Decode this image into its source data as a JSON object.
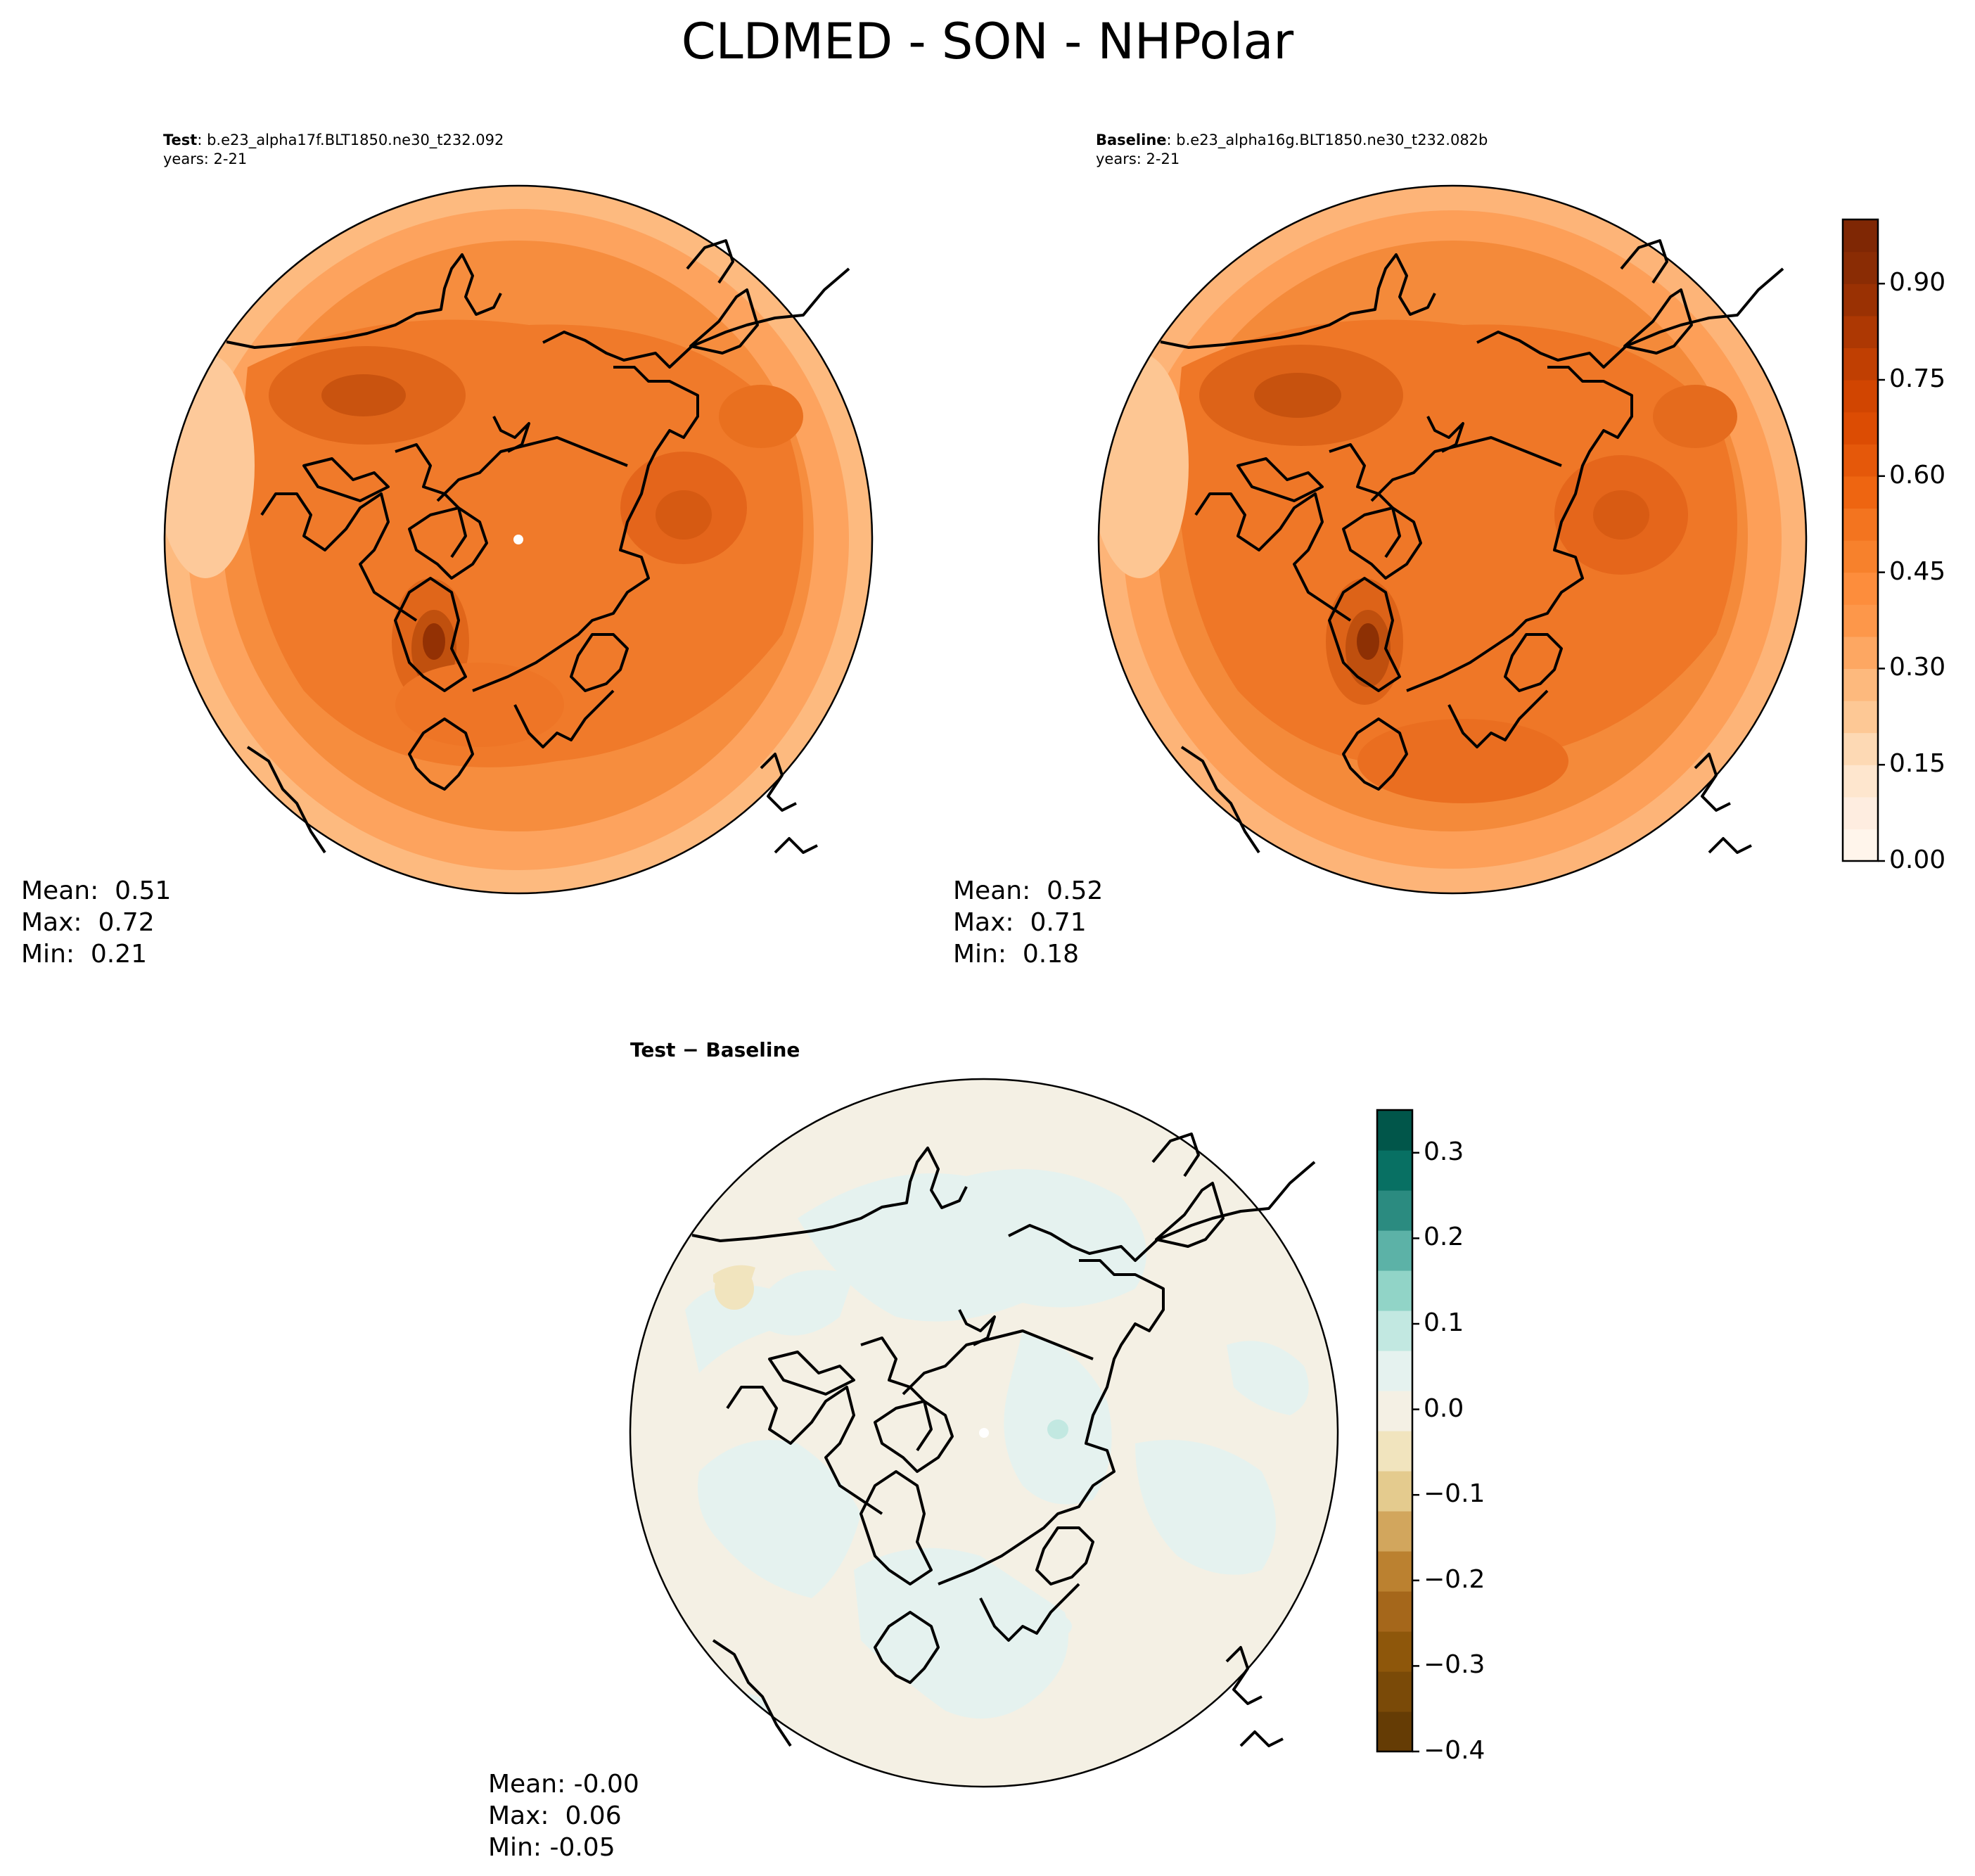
{
  "figure": {
    "title": "CLDMED - SON - NHPolar"
  },
  "panels": {
    "test": {
      "label": "Test",
      "case": ": b.e23_alpha17f.BLT1850.ne30_t232.092",
      "years": "years: 2-21",
      "mean": "Mean:  0.51",
      "max": "Max:  0.72",
      "min": "Min:  0.21"
    },
    "baseline": {
      "label": "Baseline",
      "case": ": b.e23_alpha16g.BLT1850.ne30_t232.082b",
      "years": "years: 2-21",
      "mean": "Mean:  0.52",
      "max": "Max:  0.71",
      "min": "Min:  0.18"
    },
    "difference": {
      "title_a": "Test",
      "title_op": " − ",
      "title_b": "Baseline",
      "mean": "Mean: -0.00",
      "max": "Max:  0.06",
      "min": "Min: -0.05"
    }
  },
  "chart_data": [
    {
      "type": "heatmap",
      "projection": "north-polar-stereographic",
      "panel": "Test",
      "colormap": "Oranges",
      "levels": [
        0.0,
        0.05,
        0.1,
        0.15,
        0.2,
        0.25,
        0.3,
        0.35,
        0.4,
        0.45,
        0.5,
        0.55,
        0.6,
        0.65,
        0.7,
        0.75,
        0.8,
        0.85,
        0.9,
        0.95,
        1.0
      ],
      "stats": {
        "mean": 0.51,
        "max": 0.72,
        "min": 0.21
      }
    },
    {
      "type": "heatmap",
      "projection": "north-polar-stereographic",
      "panel": "Baseline",
      "colormap": "Oranges",
      "levels": [
        0.0,
        0.05,
        0.1,
        0.15,
        0.2,
        0.25,
        0.3,
        0.35,
        0.4,
        0.45,
        0.5,
        0.55,
        0.6,
        0.65,
        0.7,
        0.75,
        0.8,
        0.85,
        0.9,
        0.95,
        1.0
      ],
      "stats": {
        "mean": 0.52,
        "max": 0.71,
        "min": 0.18
      }
    },
    {
      "type": "heatmap",
      "projection": "north-polar-stereographic",
      "panel": "Test − Baseline",
      "colormap": "BrBG",
      "levels": [
        -0.4,
        -0.35,
        -0.3,
        -0.25,
        -0.2,
        -0.15,
        -0.1,
        -0.05,
        0.0,
        0.05,
        0.1,
        0.15,
        0.2,
        0.25,
        0.3,
        0.35
      ],
      "stats": {
        "mean": -0.0,
        "max": 0.06,
        "min": -0.05
      }
    }
  ],
  "colorbars": {
    "main": {
      "ticks": [
        "0.00",
        "0.15",
        "0.30",
        "0.45",
        "0.60",
        "0.75",
        "0.90"
      ],
      "tick_values": [
        0.0,
        0.15,
        0.3,
        0.45,
        0.6,
        0.75,
        0.9
      ],
      "range": [
        0.0,
        1.0
      ],
      "colors": [
        "#fff5eb",
        "#feede0",
        "#fee6ce",
        "#fdd9b4",
        "#fdc895",
        "#fdb97d",
        "#fda762",
        "#fd974a",
        "#fd8d3c",
        "#f7812c",
        "#f3741f",
        "#ee6511",
        "#e5580a",
        "#dc4c03",
        "#d14501",
        "#c03f02",
        "#ad3803",
        "#9a3103",
        "#8a2c04",
        "#7f2704"
      ]
    },
    "diff": {
      "ticks": [
        "−0.4",
        "−0.3",
        "−0.2",
        "−0.1",
        "0.0",
        "0.1",
        "0.2",
        "0.3"
      ],
      "tick_values": [
        -0.4,
        -0.3,
        -0.2,
        -0.1,
        0.0,
        0.1,
        0.2,
        0.3
      ],
      "range": [
        -0.4,
        0.35
      ],
      "colors": [
        "#653c05",
        "#7a4a08",
        "#8e570b",
        "#a5671b",
        "#bb8130",
        "#d2a65d",
        "#e4cb8e",
        "#f1e4be",
        "#f4f0e4",
        "#e5f2ef",
        "#c2e8e1",
        "#91d4c7",
        "#5cb2a7",
        "#2b8b80",
        "#087063",
        "#01564a"
      ]
    }
  }
}
